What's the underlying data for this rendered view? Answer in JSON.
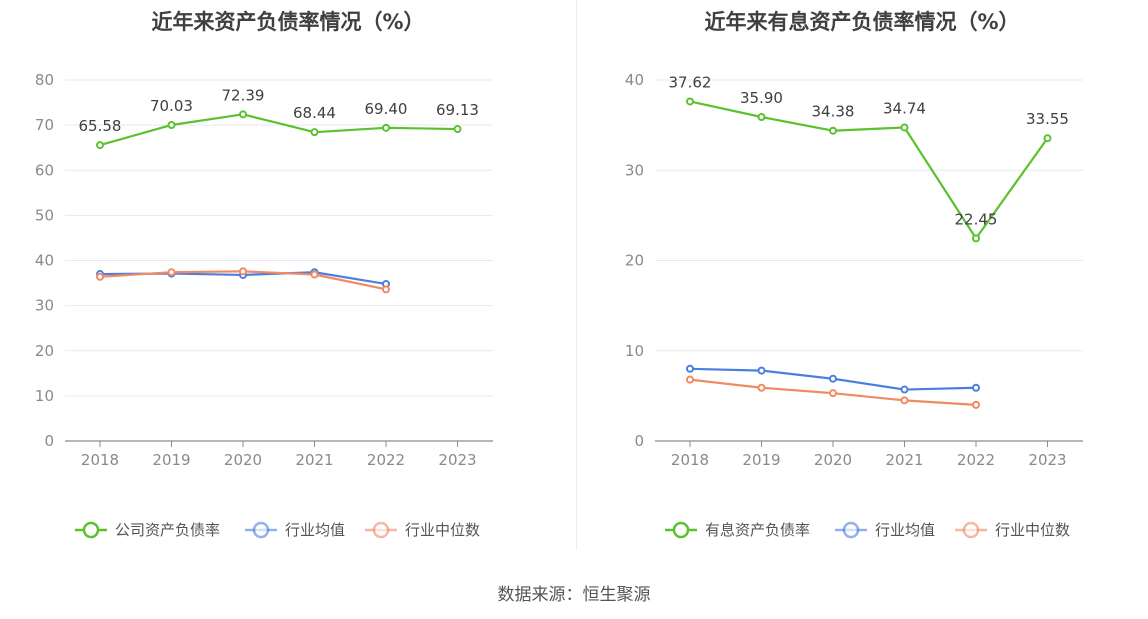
{
  "source": "数据来源：恒生聚源",
  "chart_data": [
    {
      "type": "line",
      "title": "近年来资产负债率情况（%）",
      "categories": [
        "2018",
        "2019",
        "2020",
        "2021",
        "2022",
        "2023"
      ],
      "yticks": [
        "0",
        "10",
        "20",
        "30",
        "40",
        "50",
        "60",
        "70",
        "80"
      ],
      "ylim": [
        0,
        80
      ],
      "grid": true,
      "legend_position": "bottom",
      "series": [
        {
          "name": "公司资产负债率",
          "color": "#5cc12e",
          "values": [
            65.58,
            70.03,
            72.39,
            68.44,
            69.4,
            69.13
          ],
          "labels": [
            "65.58",
            "70.03",
            "72.39",
            "68.44",
            "69.40",
            "69.13"
          ]
        },
        {
          "name": "行业均值",
          "color": "#4c7ee0",
          "values": [
            37.0,
            37.1,
            36.8,
            37.4,
            34.8,
            null
          ]
        },
        {
          "name": "行业中位数",
          "color": "#f08a62",
          "values": [
            36.4,
            37.4,
            37.6,
            36.9,
            33.6,
            null
          ]
        }
      ]
    },
    {
      "type": "line",
      "title": "近年来有息资产负债率情况（%）",
      "categories": [
        "2018",
        "2019",
        "2020",
        "2021",
        "2022",
        "2023"
      ],
      "yticks": [
        "0",
        "10",
        "20",
        "30",
        "40"
      ],
      "ylim": [
        0,
        40
      ],
      "grid": true,
      "legend_position": "bottom",
      "series": [
        {
          "name": "有息资产负债率",
          "color": "#5cc12e",
          "values": [
            37.62,
            35.9,
            34.38,
            34.74,
            22.45,
            33.55
          ],
          "labels": [
            "37.62",
            "35.90",
            "34.38",
            "34.74",
            "22.45",
            "33.55"
          ]
        },
        {
          "name": "行业均值",
          "color": "#4c7ee0",
          "values": [
            8.0,
            7.8,
            6.9,
            5.7,
            5.9,
            null
          ]
        },
        {
          "name": "行业中位数",
          "color": "#f08a62",
          "values": [
            6.8,
            5.9,
            5.3,
            4.5,
            4.0,
            null
          ]
        }
      ]
    }
  ]
}
